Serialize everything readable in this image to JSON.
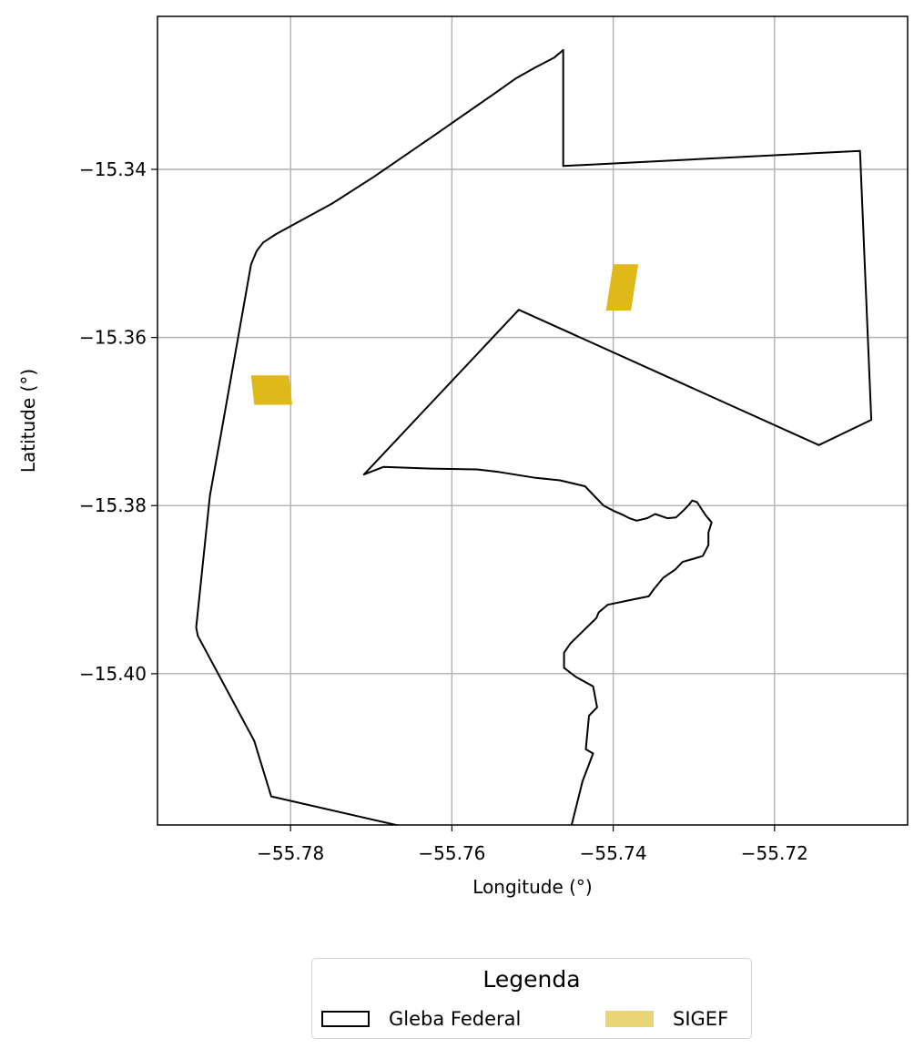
{
  "map": {
    "xlabel": "Longitude (°)",
    "ylabel": "Latitude (°)",
    "xlim": [
      -55.7965,
      -55.7035
    ],
    "ylim": [
      -15.418,
      -15.3218
    ],
    "x_ticks": [
      {
        "value": -55.78,
        "label": "−55.78"
      },
      {
        "value": -55.76,
        "label": "−55.76"
      },
      {
        "value": -55.74,
        "label": "−55.74"
      },
      {
        "value": -55.72,
        "label": "−55.72"
      }
    ],
    "y_ticks": [
      {
        "value": -15.34,
        "label": "−15.34"
      },
      {
        "value": -15.36,
        "label": "−15.36"
      },
      {
        "value": -15.38,
        "label": "−15.38"
      },
      {
        "value": -15.4,
        "label": "−15.40"
      }
    ],
    "grid": true,
    "colors": {
      "gleba_stroke": "#000000",
      "sigef_fill": "#dfb919",
      "grid": "#b0b0b0"
    }
  },
  "gleba_federal": [
    [
      -55.7462,
      -15.3258
    ],
    [
      -55.7473,
      -15.3267
    ],
    [
      -55.7497,
      -15.3279
    ],
    [
      -55.7521,
      -15.3292
    ],
    [
      -55.7549,
      -15.3311
    ],
    [
      -55.7618,
      -15.3357
    ],
    [
      -55.7697,
      -15.3409
    ],
    [
      -55.7749,
      -15.3441
    ],
    [
      -55.7818,
      -15.3477
    ],
    [
      -55.7834,
      -15.3487
    ],
    [
      -55.7842,
      -15.3497
    ],
    [
      -55.7849,
      -15.3513
    ],
    [
      -55.7885,
      -15.3708
    ],
    [
      -55.79,
      -15.3788
    ],
    [
      -55.7917,
      -15.3945
    ],
    [
      -55.7915,
      -15.3955
    ],
    [
      -55.7845,
      -15.408
    ],
    [
      -55.7824,
      -15.4146
    ],
    [
      -55.7469,
      -15.4224
    ],
    [
      -55.7458,
      -15.4205
    ],
    [
      -55.7438,
      -15.4128
    ],
    [
      -55.7425,
      -15.4095
    ],
    [
      -55.7434,
      -15.409
    ],
    [
      -55.743,
      -15.405
    ],
    [
      -55.742,
      -15.404
    ],
    [
      -55.7425,
      -15.4015
    ],
    [
      -55.7446,
      -15.4004
    ],
    [
      -55.7461,
      -15.3993
    ],
    [
      -55.7461,
      -15.3975
    ],
    [
      -55.7453,
      -15.3964
    ],
    [
      -55.7436,
      -15.3948
    ],
    [
      -55.7421,
      -15.3934
    ],
    [
      -55.7418,
      -15.3927
    ],
    [
      -55.7407,
      -15.3918
    ],
    [
      -55.7377,
      -15.3912
    ],
    [
      -55.7356,
      -15.3908
    ],
    [
      -55.735,
      -15.39
    ],
    [
      -55.7338,
      -15.3886
    ],
    [
      -55.7323,
      -15.3876
    ],
    [
      -55.7314,
      -15.3867
    ],
    [
      -55.7296,
      -15.3862
    ],
    [
      -55.7289,
      -15.386
    ],
    [
      -55.7282,
      -15.3847
    ],
    [
      -55.7282,
      -15.3832
    ],
    [
      -55.7278,
      -15.382
    ],
    [
      -55.7285,
      -15.3812
    ],
    [
      -55.729,
      -15.3805
    ],
    [
      -55.7296,
      -15.3796
    ],
    [
      -55.7302,
      -15.3794
    ],
    [
      -55.7307,
      -15.38
    ],
    [
      -55.7312,
      -15.3805
    ],
    [
      -55.7322,
      -15.3814
    ],
    [
      -55.7333,
      -15.3815
    ],
    [
      -55.7348,
      -15.381
    ],
    [
      -55.7358,
      -15.3815
    ],
    [
      -55.7371,
      -15.3818
    ],
    [
      -55.738,
      -15.3815
    ],
    [
      -55.7388,
      -15.3811
    ],
    [
      -55.74,
      -15.3806
    ],
    [
      -55.7412,
      -15.38
    ],
    [
      -55.7422,
      -15.379
    ],
    [
      -55.7435,
      -15.3777
    ],
    [
      -55.7466,
      -15.377
    ],
    [
      -55.7496,
      -15.3767
    ],
    [
      -55.7542,
      -15.376
    ],
    [
      -55.7569,
      -15.3757
    ],
    [
      -55.7626,
      -15.3756
    ],
    [
      -55.7685,
      -15.3754
    ],
    [
      -55.7709,
      -15.3763
    ],
    [
      -55.7517,
      -15.3567
    ],
    [
      -55.7145,
      -15.3728
    ],
    [
      -55.708,
      -15.3698
    ],
    [
      -55.7094,
      -15.3378
    ],
    [
      -55.7462,
      -15.3396
    ],
    [
      -55.7462,
      -15.3258
    ]
  ],
  "sigef_parcels": [
    [
      [
        -55.7369,
        -15.3513
      ],
      [
        -55.74,
        -15.3513
      ],
      [
        -55.7409,
        -15.3568
      ],
      [
        -55.7378,
        -15.3568
      ]
    ],
    [
      [
        -55.7802,
        -15.3645
      ],
      [
        -55.7849,
        -15.3645
      ],
      [
        -55.7845,
        -15.368
      ],
      [
        -55.7798,
        -15.368
      ]
    ]
  ],
  "legend": {
    "title": "Legenda",
    "items": [
      {
        "label": "Gleba Federal"
      },
      {
        "label": "SIGEF"
      }
    ]
  }
}
